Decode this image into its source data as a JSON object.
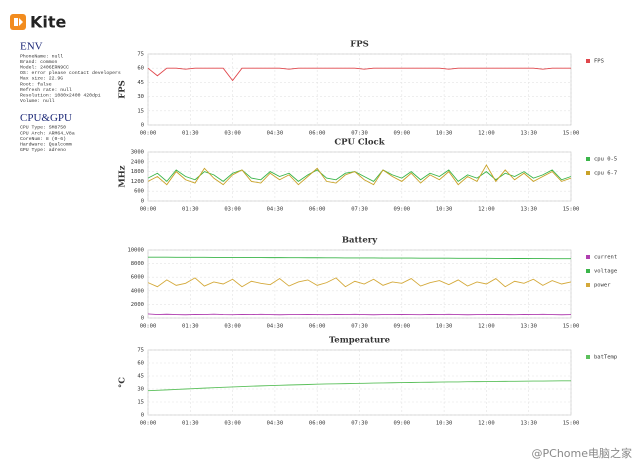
{
  "app": {
    "name": "Kite"
  },
  "sidebar": [
    {
      "title": "ENV",
      "lines": [
        "PhoneName: null",
        "Brand: common",
        "Model: 2406ERN9CC",
        "OS: error please contact developers",
        "Max size: 22.9G",
        "Root: false",
        "Refresh rate: null",
        "Resolution: 1080x2400 420dpi",
        "Volume: null"
      ]
    },
    {
      "title": "CPU&GPU",
      "lines": [
        "CPU Type: SM8750",
        "CPU Arch: ARM64_V8a",
        "CoreNum: 8 (0-6)",
        "Hardware: Qualcomm",
        "GPU Type: adreno"
      ]
    }
  ],
  "watermark": "@PChome电脑之家",
  "chart_data": [
    {
      "type": "line",
      "title": "FPS",
      "y_label": "FPS",
      "grid": true,
      "x": [
        0,
        20,
        40,
        60,
        80,
        100,
        120,
        140,
        160,
        180,
        200,
        220,
        240,
        260,
        280,
        300,
        320,
        340,
        360,
        380,
        400,
        420,
        440,
        460,
        480,
        500,
        520,
        540,
        560,
        580,
        600,
        620,
        640,
        660,
        680,
        700,
        720,
        740,
        760,
        780,
        800,
        820,
        840,
        860,
        880,
        900
      ],
      "xlim": [
        0,
        900
      ],
      "xticks": [
        {
          "value": 0,
          "label": "00:00"
        },
        {
          "value": 90,
          "label": "01:30"
        },
        {
          "value": 180,
          "label": "03:00"
        },
        {
          "value": 270,
          "label": "04:30"
        },
        {
          "value": 360,
          "label": "06:00"
        },
        {
          "value": 450,
          "label": "07:30"
        },
        {
          "value": 540,
          "label": "09:00"
        },
        {
          "value": 630,
          "label": "10:30"
        },
        {
          "value": 720,
          "label": "12:00"
        },
        {
          "value": 810,
          "label": "13:30"
        },
        {
          "value": 900,
          "label": "15:00"
        }
      ],
      "ylim": [
        0,
        75
      ],
      "yticks": [
        0,
        15,
        30,
        45,
        60,
        75
      ],
      "series": [
        {
          "name": "FPS",
          "color": "#e0474c",
          "values": [
            60,
            52,
            60,
            60,
            59,
            60,
            60,
            60,
            60,
            47,
            60,
            60,
            60,
            60,
            60,
            59,
            60,
            60,
            60,
            60,
            60,
            60,
            60,
            59,
            60,
            60,
            60,
            60,
            60,
            60,
            60,
            60,
            59,
            60,
            60,
            60,
            60,
            60,
            60,
            60,
            60,
            60,
            59,
            60,
            60,
            60
          ]
        }
      ]
    },
    {
      "type": "line",
      "title": "CPU Clock",
      "y_label": "MHz",
      "grid": true,
      "x": [
        0,
        20,
        40,
        60,
        80,
        100,
        120,
        140,
        160,
        180,
        200,
        220,
        240,
        260,
        280,
        300,
        320,
        340,
        360,
        380,
        400,
        420,
        440,
        460,
        480,
        500,
        520,
        540,
        560,
        580,
        600,
        620,
        640,
        660,
        680,
        700,
        720,
        740,
        760,
        780,
        800,
        820,
        840,
        860,
        880,
        900
      ],
      "xlim": [
        0,
        900
      ],
      "xticks": [
        {
          "value": 0,
          "label": "00:00"
        },
        {
          "value": 90,
          "label": "01:30"
        },
        {
          "value": 180,
          "label": "03:00"
        },
        {
          "value": 270,
          "label": "04:30"
        },
        {
          "value": 360,
          "label": "06:00"
        },
        {
          "value": 450,
          "label": "07:30"
        },
        {
          "value": 540,
          "label": "09:00"
        },
        {
          "value": 630,
          "label": "10:30"
        },
        {
          "value": 720,
          "label": "12:00"
        },
        {
          "value": 810,
          "label": "13:30"
        },
        {
          "value": 900,
          "label": "15:00"
        }
      ],
      "ylim": [
        0,
        3000
      ],
      "yticks": [
        0,
        600,
        1200,
        1800,
        2400,
        3000
      ],
      "series": [
        {
          "name": "cpu 0-5",
          "color": "#3bb54a",
          "values": [
            1400,
            1700,
            1200,
            1900,
            1500,
            1300,
            1800,
            1600,
            1200,
            1700,
            1900,
            1400,
            1300,
            1800,
            1500,
            1700,
            1200,
            1600,
            1900,
            1400,
            1300,
            1700,
            1800,
            1500,
            1200,
            1900,
            1600,
            1400,
            1800,
            1300,
            1700,
            1500,
            1900,
            1200,
            1600,
            1400,
            1800,
            1300,
            1700,
            1500,
            1800,
            1400,
            1600,
            1900,
            1300,
            1500
          ]
        },
        {
          "name": "cpu 6-7",
          "color": "#c9a227",
          "values": [
            1200,
            1500,
            1000,
            1800,
            1300,
            1100,
            2000,
            1400,
            1000,
            1600,
            1900,
            1200,
            1100,
            1700,
            1300,
            1600,
            1000,
            1500,
            2000,
            1200,
            1100,
            1600,
            1800,
            1300,
            1000,
            1900,
            1500,
            1200,
            1700,
            1100,
            1600,
            1300,
            1800,
            1000,
            1500,
            1200,
            2200,
            1200,
            1900,
            1300,
            1700,
            1200,
            1500,
            1800,
            1200,
            1400
          ]
        }
      ]
    },
    {
      "type": "line",
      "title": "Battery",
      "grid": true,
      "x": [
        0,
        20,
        40,
        60,
        80,
        100,
        120,
        140,
        160,
        180,
        200,
        220,
        240,
        260,
        280,
        300,
        320,
        340,
        360,
        380,
        400,
        420,
        440,
        460,
        480,
        500,
        520,
        540,
        560,
        580,
        600,
        620,
        640,
        660,
        680,
        700,
        720,
        740,
        760,
        780,
        800,
        820,
        840,
        860,
        880,
        900
      ],
      "xlim": [
        0,
        900
      ],
      "xticks": [
        {
          "value": 0,
          "label": "00:00"
        },
        {
          "value": 90,
          "label": "01:30"
        },
        {
          "value": 180,
          "label": "03:00"
        },
        {
          "value": 270,
          "label": "04:30"
        },
        {
          "value": 360,
          "label": "06:00"
        },
        {
          "value": 450,
          "label": "07:30"
        },
        {
          "value": 540,
          "label": "09:00"
        },
        {
          "value": 630,
          "label": "10:30"
        },
        {
          "value": 720,
          "label": "12:00"
        },
        {
          "value": 810,
          "label": "13:30"
        },
        {
          "value": 900,
          "label": "15:00"
        }
      ],
      "ylim": [
        0,
        10000
      ],
      "yticks": [
        0,
        2000,
        4000,
        6000,
        8000,
        10000
      ],
      "series": [
        {
          "name": "current",
          "color": "#b03fb0",
          "values": [
            600,
            500,
            550,
            500,
            480,
            520,
            500,
            560,
            500,
            490,
            520,
            500,
            540,
            500,
            480,
            510,
            500,
            530,
            500,
            490,
            520,
            500,
            540,
            500,
            480,
            510,
            500,
            530,
            500,
            490,
            520,
            500,
            540,
            500,
            480,
            510,
            500,
            530,
            500,
            490,
            520,
            500,
            540,
            500,
            480,
            510
          ]
        },
        {
          "name": "voltage",
          "color": "#3bb54a",
          "values": [
            8950,
            8940,
            8940,
            8930,
            8930,
            8920,
            8920,
            8910,
            8910,
            8900,
            8900,
            8890,
            8890,
            8880,
            8880,
            8870,
            8870,
            8860,
            8860,
            8850,
            8850,
            8840,
            8840,
            8830,
            8830,
            8820,
            8820,
            8810,
            8810,
            8800,
            8800,
            8790,
            8790,
            8780,
            8780,
            8770,
            8770,
            8760,
            8760,
            8750,
            8750,
            8740,
            8740,
            8730,
            8730,
            8720
          ]
        },
        {
          "name": "power",
          "color": "#d4a93a",
          "values": [
            5200,
            4600,
            5600,
            4800,
            5100,
            5900,
            4700,
            5300,
            5000,
            5700,
            4600,
            5400,
            5100,
            4900,
            5800,
            4700,
            5300,
            5600,
            4800,
            5200,
            5900,
            4600,
            5400,
            5000,
            5700,
            4800,
            5300,
            5100,
            5800,
            4700,
            5200,
            5500,
            4900,
            5600,
            4700,
            5300,
            5000,
            5800,
            4600,
            5400,
            5100,
            5700,
            4800,
            5500,
            5000,
            5300
          ]
        }
      ]
    },
    {
      "type": "line",
      "title": "Temperature",
      "y_label": "°C",
      "grid": true,
      "x": [
        0,
        20,
        40,
        60,
        80,
        100,
        120,
        140,
        160,
        180,
        200,
        220,
        240,
        260,
        280,
        300,
        320,
        340,
        360,
        380,
        400,
        420,
        440,
        460,
        480,
        500,
        520,
        540,
        560,
        580,
        600,
        620,
        640,
        660,
        680,
        700,
        720,
        740,
        760,
        780,
        800,
        820,
        840,
        860,
        880,
        900
      ],
      "xlim": [
        0,
        900
      ],
      "xticks": [
        {
          "value": 0,
          "label": "00:00"
        },
        {
          "value": 90,
          "label": "01:30"
        },
        {
          "value": 180,
          "label": "03:00"
        },
        {
          "value": 270,
          "label": "04:30"
        },
        {
          "value": 360,
          "label": "06:00"
        },
        {
          "value": 450,
          "label": "07:30"
        },
        {
          "value": 540,
          "label": "09:00"
        },
        {
          "value": 630,
          "label": "10:30"
        },
        {
          "value": 720,
          "label": "12:00"
        },
        {
          "value": 810,
          "label": "13:30"
        },
        {
          "value": 900,
          "label": "15:00"
        }
      ],
      "ylim": [
        0,
        75
      ],
      "yticks": [
        0,
        15,
        30,
        45,
        60,
        75
      ],
      "series": [
        {
          "name": "batTemp",
          "color": "#5cc05c",
          "values": [
            28,
            28.5,
            29,
            29.5,
            30,
            30.5,
            31,
            31.5,
            32,
            32.4,
            32.8,
            33.2,
            33.6,
            34,
            34.3,
            34.6,
            34.9,
            35.2,
            35.5,
            35.8,
            36,
            36.2,
            36.4,
            36.6,
            36.8,
            37,
            37.2,
            37.4,
            37.5,
            37.7,
            37.8,
            38,
            38.1,
            38.2,
            38.4,
            38.5,
            38.6,
            38.7,
            38.8,
            38.9,
            39,
            39.1,
            39.2,
            39.3,
            39.4,
            39.5
          ]
        }
      ]
    }
  ]
}
